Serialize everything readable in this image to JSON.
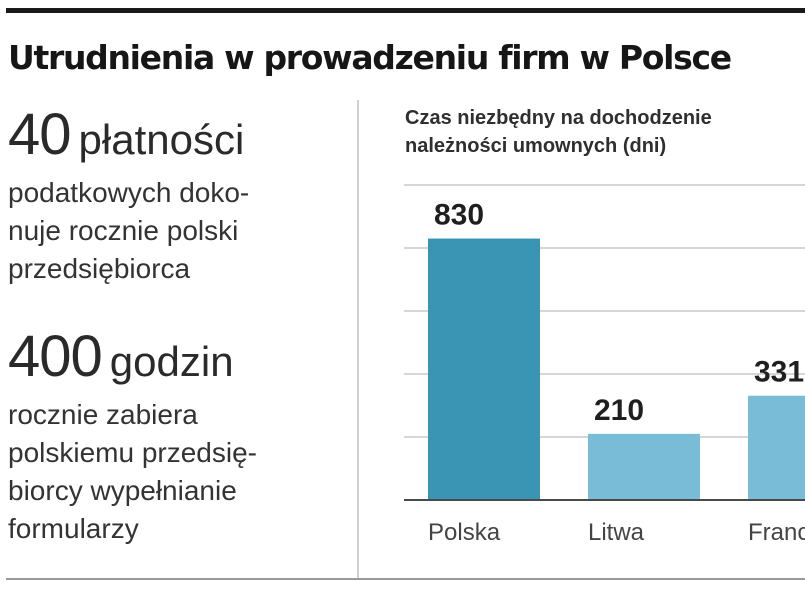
{
  "title": "Utrudnienia w prowadzeniu firm w Polsce",
  "facts": [
    {
      "number": "40",
      "unit": "płatności",
      "description": "podatkowych doko-\nnuje rocznie polski\nprzedsiębiorca"
    },
    {
      "number": "400",
      "unit": "godzin",
      "description": "rocznie zabiera\npolskiemu przedsię-\nbiorcy wypełnianie\nformularzy"
    }
  ],
  "chart_data": {
    "type": "bar",
    "title": "Czas niezbędny na dochodzenie\nnależności umownych (dni)",
    "categories": [
      "Polska",
      "Litwa",
      "Francja"
    ],
    "values": [
      830,
      210,
      331
    ],
    "value_labels": [
      "830",
      "210",
      "331"
    ],
    "ylim": [
      0,
      1000
    ],
    "grid": true,
    "colors": [
      "#3a94b4",
      "#78bcd8",
      "#78bcd8"
    ],
    "grid_color": "#c8c8c8",
    "baseline_color": "#4a4a4a"
  }
}
